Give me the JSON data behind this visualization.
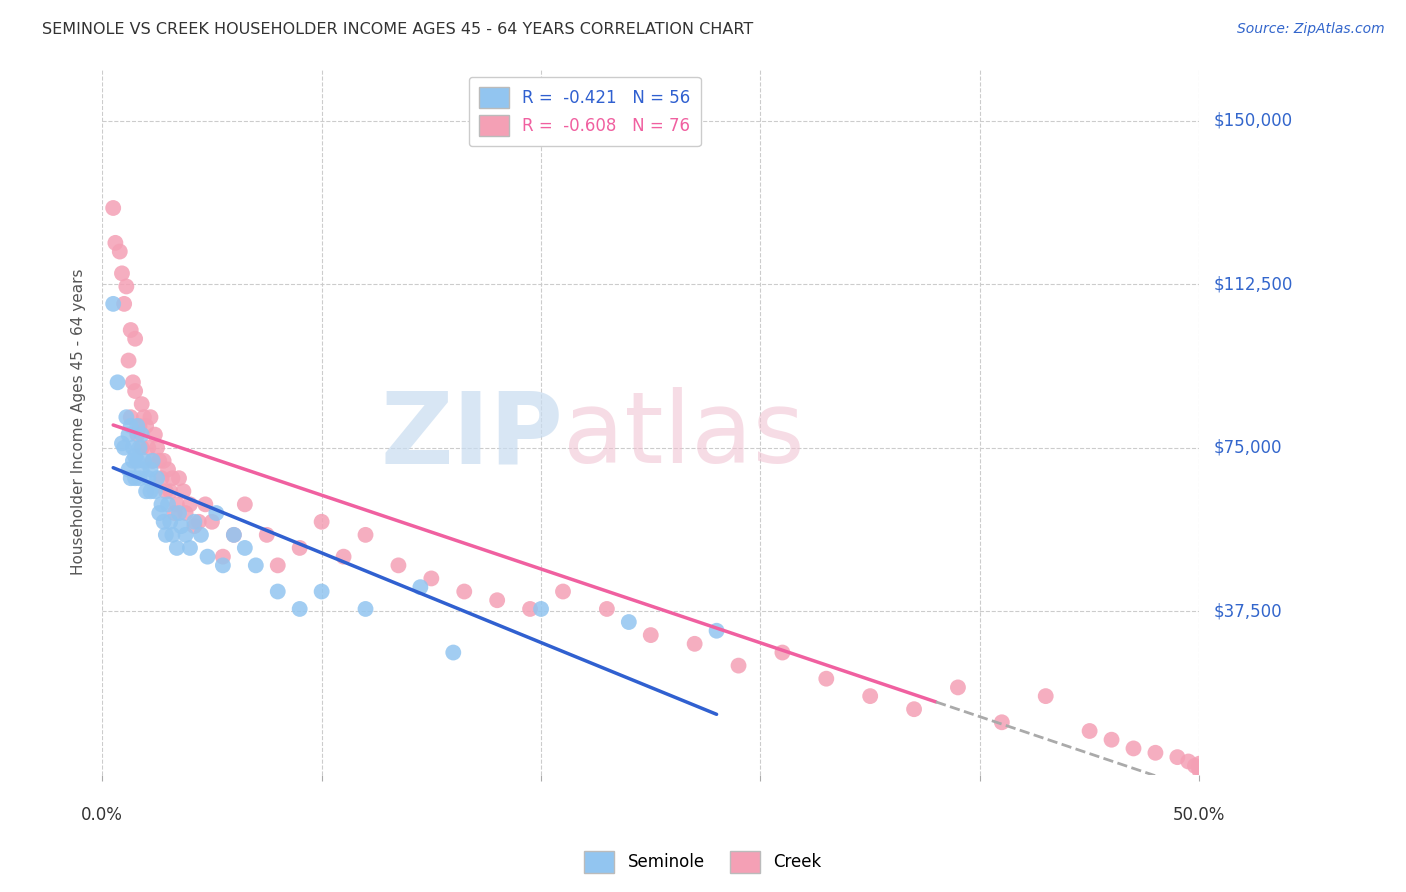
{
  "title": "SEMINOLE VS CREEK HOUSEHOLDER INCOME AGES 45 - 64 YEARS CORRELATION CHART",
  "source": "Source: ZipAtlas.com",
  "ylabel": "Householder Income Ages 45 - 64 years",
  "ytick_labels": [
    "$37,500",
    "$75,000",
    "$112,500",
    "$150,000"
  ],
  "ytick_values": [
    37500,
    75000,
    112500,
    150000
  ],
  "ylim": [
    0,
    162000
  ],
  "xlim": [
    0.0,
    0.5
  ],
  "xtick_positions": [
    0.0,
    0.1,
    0.2,
    0.3,
    0.4,
    0.5
  ],
  "legend_seminole": "R =  -0.421   N = 56",
  "legend_creek": "R =  -0.608   N = 76",
  "seminole_color": "#92C5F0",
  "creek_color": "#F4A0B5",
  "trend_seminole_color": "#3060D0",
  "trend_creek_color": "#F060A0",
  "watermark_zip_color": "#C8DCF0",
  "watermark_atlas_color": "#F0C8D8",
  "seminole_x": [
    0.005,
    0.007,
    0.009,
    0.01,
    0.011,
    0.012,
    0.012,
    0.013,
    0.013,
    0.014,
    0.014,
    0.015,
    0.015,
    0.016,
    0.016,
    0.017,
    0.017,
    0.018,
    0.018,
    0.019,
    0.02,
    0.021,
    0.022,
    0.022,
    0.023,
    0.024,
    0.025,
    0.026,
    0.027,
    0.028,
    0.029,
    0.03,
    0.031,
    0.032,
    0.034,
    0.035,
    0.036,
    0.038,
    0.04,
    0.042,
    0.045,
    0.048,
    0.052,
    0.055,
    0.06,
    0.065,
    0.07,
    0.08,
    0.09,
    0.1,
    0.12,
    0.145,
    0.16,
    0.2,
    0.24,
    0.28
  ],
  "seminole_y": [
    108000,
    90000,
    76000,
    75000,
    82000,
    78000,
    70000,
    68000,
    80000,
    72000,
    75000,
    73000,
    68000,
    80000,
    72000,
    75000,
    68000,
    78000,
    70000,
    72000,
    65000,
    68000,
    70000,
    65000,
    72000,
    65000,
    68000,
    60000,
    62000,
    58000,
    55000,
    62000,
    58000,
    55000,
    52000,
    60000,
    57000,
    55000,
    52000,
    58000,
    55000,
    50000,
    60000,
    48000,
    55000,
    52000,
    48000,
    42000,
    38000,
    42000,
    38000,
    43000,
    28000,
    38000,
    35000,
    33000
  ],
  "creek_x": [
    0.005,
    0.006,
    0.008,
    0.009,
    0.01,
    0.011,
    0.012,
    0.013,
    0.013,
    0.014,
    0.015,
    0.015,
    0.016,
    0.017,
    0.018,
    0.018,
    0.019,
    0.02,
    0.021,
    0.022,
    0.023,
    0.024,
    0.025,
    0.026,
    0.027,
    0.028,
    0.029,
    0.03,
    0.031,
    0.032,
    0.033,
    0.034,
    0.035,
    0.037,
    0.038,
    0.04,
    0.042,
    0.044,
    0.047,
    0.05,
    0.055,
    0.06,
    0.065,
    0.075,
    0.08,
    0.09,
    0.1,
    0.11,
    0.12,
    0.135,
    0.15,
    0.165,
    0.18,
    0.195,
    0.21,
    0.23,
    0.25,
    0.27,
    0.29,
    0.31,
    0.33,
    0.35,
    0.37,
    0.39,
    0.41,
    0.43,
    0.45,
    0.46,
    0.47,
    0.48,
    0.49,
    0.495,
    0.498,
    0.5,
    0.5,
    0.5
  ],
  "creek_y": [
    130000,
    122000,
    120000,
    115000,
    108000,
    112000,
    95000,
    102000,
    82000,
    90000,
    88000,
    100000,
    78000,
    80000,
    85000,
    75000,
    82000,
    80000,
    75000,
    82000,
    72000,
    78000,
    75000,
    72000,
    68000,
    72000,
    65000,
    70000,
    65000,
    68000,
    60000,
    62000,
    68000,
    65000,
    60000,
    62000,
    57000,
    58000,
    62000,
    58000,
    50000,
    55000,
    62000,
    55000,
    48000,
    52000,
    58000,
    50000,
    55000,
    48000,
    45000,
    42000,
    40000,
    38000,
    42000,
    38000,
    32000,
    30000,
    25000,
    28000,
    22000,
    18000,
    15000,
    20000,
    12000,
    18000,
    10000,
    8000,
    6000,
    5000,
    4000,
    3000,
    2000,
    1000,
    1500,
    2500
  ],
  "trend_solid_end": 0.38
}
